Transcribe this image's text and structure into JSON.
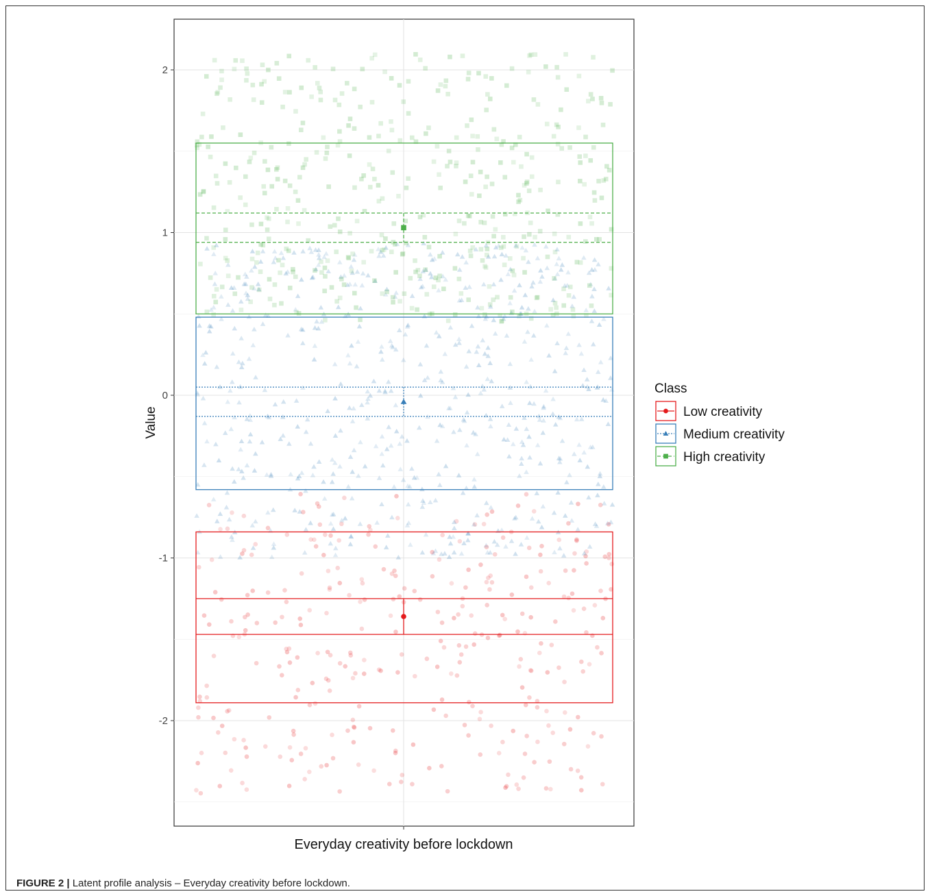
{
  "chart_data": {
    "type": "scatter",
    "xlabel": "Everyday creativity before lockdown",
    "ylabel": "Value",
    "y_ticks": [
      "-2",
      "-1",
      "0",
      "1",
      "2"
    ],
    "ylim": [
      -2.65,
      2.3
    ],
    "grid": true,
    "legend": {
      "title": "Class",
      "placement": "right",
      "entries": [
        "Low creativity",
        "Medium creativity",
        "High creativity"
      ]
    },
    "series": [
      {
        "name": "Low creativity",
        "marker": "circle",
        "line": "solid",
        "color": "#e41a1c",
        "mean": -1.36,
        "ci": [
          -1.47,
          -1.25
        ],
        "box": [
          -1.89,
          -0.84
        ],
        "points_range": [
          -2.45,
          -0.6
        ]
      },
      {
        "name": "Medium creativity",
        "marker": "triangle",
        "line": "dotted",
        "color": "#377eb8",
        "mean": -0.04,
        "ci": [
          -0.13,
          0.05
        ],
        "box": [
          -0.58,
          0.48
        ],
        "points_range": [
          -1.0,
          0.95
        ]
      },
      {
        "name": "High creativity",
        "marker": "square",
        "line": "dashed",
        "color": "#4daf4a",
        "mean": 1.03,
        "ci": [
          0.94,
          1.12
        ],
        "box": [
          0.5,
          1.55
        ],
        "points_range": [
          0.45,
          2.1
        ]
      }
    ]
  },
  "caption": {
    "label": "FIGURE 2 |",
    "text": " Latent profile analysis – Everyday creativity before lockdown."
  }
}
